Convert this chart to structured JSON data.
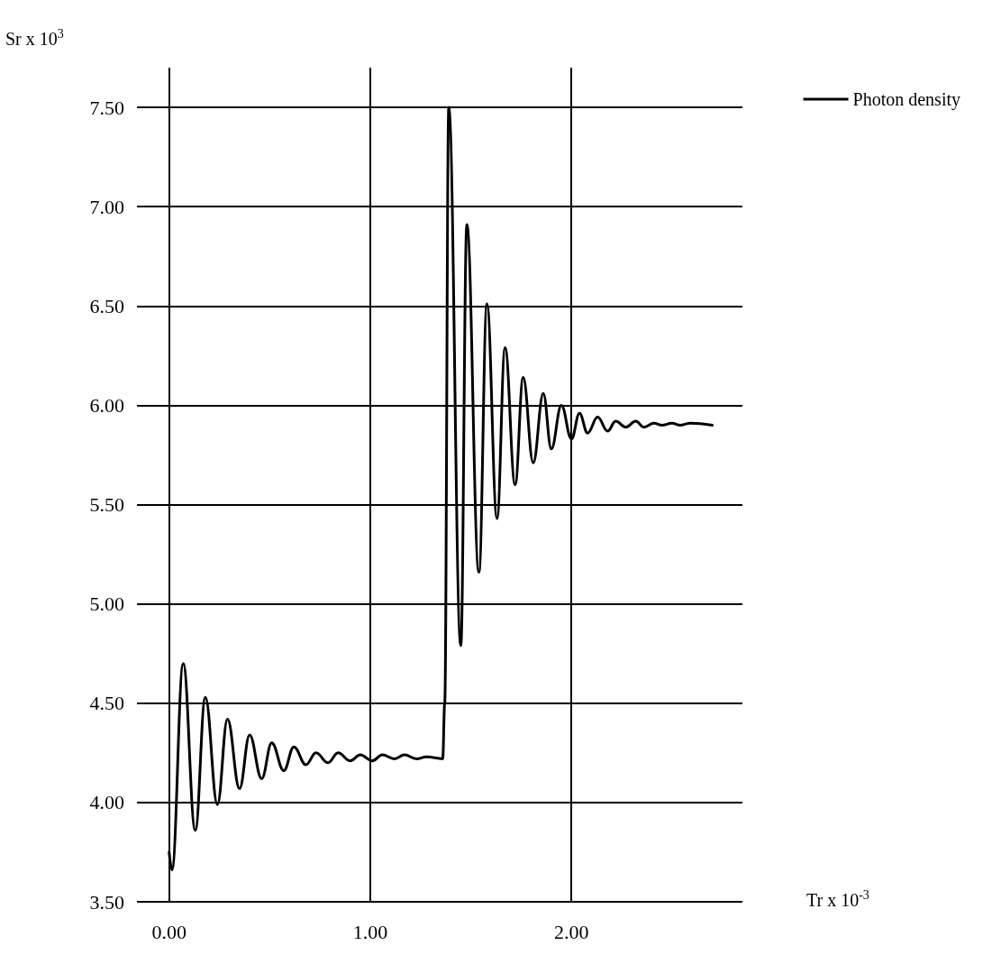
{
  "chart_data": {
    "type": "line",
    "xlabel": "Tr x 10$^{-3}$",
    "ylabel": "Sr x 10$^{3}$",
    "xlim": [
      -0.16,
      2.85
    ],
    "ylim": [
      3.5,
      7.7
    ],
    "xticks": [
      {
        "value": 0,
        "label": "0.00"
      },
      {
        "value": 1,
        "label": "1.00"
      },
      {
        "value": 2,
        "label": "2.00"
      }
    ],
    "yticks": [
      {
        "value": 3.5,
        "label": "3.50"
      },
      {
        "value": 4,
        "label": "4.00"
      },
      {
        "value": 4.5,
        "label": "4.50"
      },
      {
        "value": 5,
        "label": "5.00"
      },
      {
        "value": 5.5,
        "label": "5.50"
      },
      {
        "value": 6,
        "label": "6.00"
      },
      {
        "value": 6.5,
        "label": "6.50"
      },
      {
        "value": 7,
        "label": "7.00"
      },
      {
        "value": 7.5,
        "label": "7.50"
      }
    ],
    "grid": true,
    "legend": "top right",
    "marker": "none",
    "line_style": "solid",
    "series": [
      {
        "name": "Photon density",
        "color": "#000000",
        "x": [
          0,
          0.014,
          0.07,
          0.13,
          0.18,
          0.24,
          0.29,
          0.35,
          0.4,
          0.46,
          0.51,
          0.57,
          0.62,
          0.68,
          0.73,
          0.79,
          0.84,
          0.9,
          0.95,
          1.01,
          1.06,
          1.12,
          1.17,
          1.23,
          1.28,
          1.36,
          1.37,
          1.39,
          1.45,
          1.48,
          1.54,
          1.58,
          1.63,
          1.67,
          1.72,
          1.76,
          1.81,
          1.86,
          1.9,
          1.95,
          2.0,
          2.04,
          2.08,
          2.13,
          2.18,
          2.22,
          2.27,
          2.32,
          2.36,
          2.41,
          2.45,
          2.5,
          2.54,
          2.59,
          2.7
        ],
        "values": [
          3.75,
          3.66,
          4.7,
          3.86,
          4.53,
          3.99,
          4.42,
          4.07,
          4.34,
          4.12,
          4.3,
          4.16,
          4.28,
          4.19,
          4.25,
          4.2,
          4.25,
          4.21,
          4.24,
          4.21,
          4.24,
          4.22,
          4.24,
          4.22,
          4.23,
          4.22,
          4.5,
          7.5,
          4.79,
          6.91,
          5.16,
          6.51,
          5.43,
          6.29,
          5.6,
          6.14,
          5.71,
          6.06,
          5.78,
          6.0,
          5.83,
          5.96,
          5.86,
          5.94,
          5.87,
          5.92,
          5.89,
          5.92,
          5.89,
          5.91,
          5.9,
          5.91,
          5.9,
          5.91,
          5.9
        ]
      }
    ]
  }
}
